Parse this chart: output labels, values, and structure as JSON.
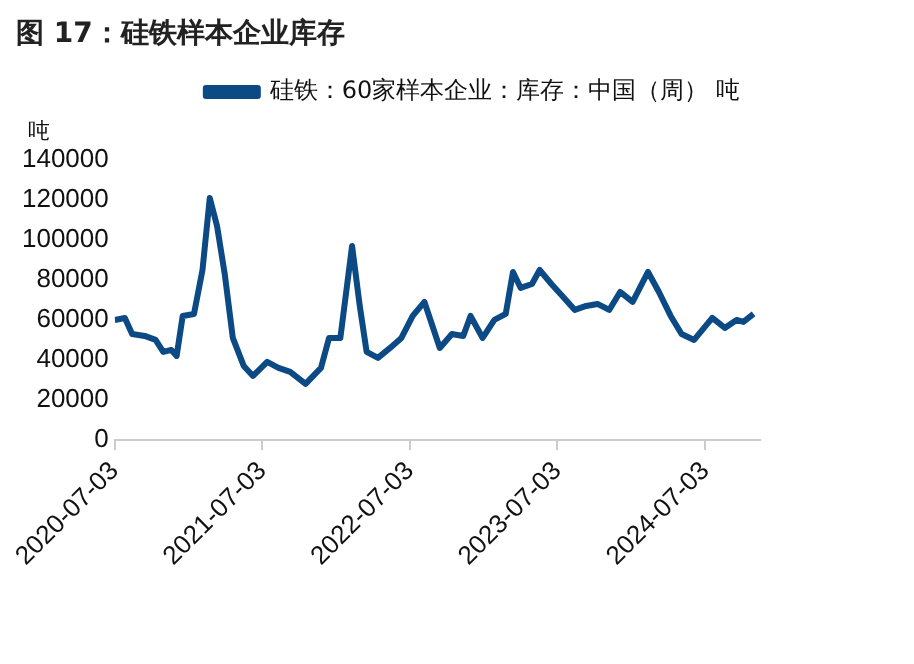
{
  "chart_data": {
    "type": "line",
    "title": "图 17：硅铁样本企业库存",
    "ylabel": "吨",
    "legend": "top",
    "x": [
      "2020-07-03",
      "2020-07-28",
      "2020-08-15",
      "2020-09-15",
      "2020-10-12",
      "2020-10-31",
      "2020-11-20",
      "2020-12-03",
      "2020-12-18",
      "2021-01-15",
      "2021-02-05",
      "2021-02-23",
      "2021-03-13",
      "2021-04-01",
      "2021-04-21",
      "2021-05-18",
      "2021-06-10",
      "2021-07-15",
      "2021-08-12",
      "2021-09-10",
      "2021-10-18",
      "2021-11-25",
      "2021-12-15",
      "2022-01-12",
      "2022-02-10",
      "2022-03-01",
      "2022-03-18",
      "2022-04-15",
      "2022-05-15",
      "2022-06-12",
      "2022-07-10",
      "2022-08-08",
      "2022-09-15",
      "2022-10-15",
      "2022-11-12",
      "2022-11-30",
      "2022-12-30",
      "2023-01-28",
      "2023-02-25",
      "2023-03-15",
      "2023-04-03",
      "2023-05-01",
      "2023-05-20",
      "2023-06-18",
      "2023-07-15",
      "2023-08-15",
      "2023-09-12",
      "2023-10-10",
      "2023-11-08",
      "2023-12-05",
      "2024-01-05",
      "2024-02-12",
      "2024-03-10",
      "2024-04-08",
      "2024-05-05",
      "2024-06-05",
      "2024-07-20",
      "2024-08-20",
      "2024-09-18",
      "2024-10-05",
      "2024-10-30"
    ],
    "series": [
      {
        "name": "硅铁：60家样本企业：库存：中国（周） 吨",
        "color": "#0b4a84",
        "values": [
          60000,
          61000,
          53000,
          52000,
          50000,
          44000,
          45000,
          42000,
          62000,
          63000,
          85000,
          121000,
          107000,
          83000,
          51000,
          37000,
          32000,
          39000,
          36000,
          34000,
          28000,
          36000,
          51000,
          51000,
          97000,
          67000,
          44000,
          41000,
          46000,
          51000,
          62000,
          69000,
          46000,
          53000,
          52000,
          62000,
          51000,
          60000,
          63000,
          84000,
          76000,
          78000,
          85000,
          78000,
          72000,
          65000,
          67000,
          68000,
          65000,
          74000,
          69000,
          84000,
          74000,
          62000,
          53000,
          50000,
          61000,
          56000,
          60000,
          59000,
          63000
        ]
      }
    ],
    "xlim": [
      "2020-07-03",
      "2024-11-15"
    ],
    "xticks": [
      "2020-07-03",
      "2021-07-03",
      "2022-07-03",
      "2023-07-03",
      "2024-07-03"
    ],
    "ylim": [
      0,
      140000
    ],
    "yticks": [
      0,
      20000,
      40000,
      60000,
      80000,
      100000,
      120000,
      140000
    ],
    "grid": false,
    "marker": "none",
    "line_style": "solid"
  }
}
